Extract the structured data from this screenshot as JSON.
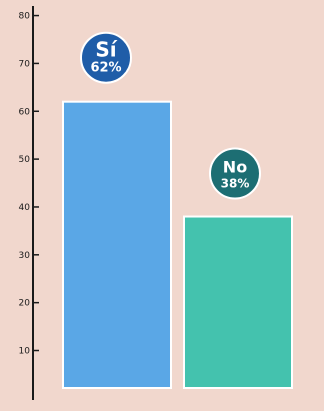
{
  "chart_data": {
    "type": "bar",
    "categories": [
      "Sí",
      "No"
    ],
    "values": [
      62,
      38
    ],
    "badges": [
      {
        "category": "Sí",
        "value_label": "62%"
      },
      {
        "category": "No",
        "value_label": "38%"
      }
    ],
    "title": "",
    "xlabel": "",
    "ylabel": "",
    "ylim": [
      3,
      82
    ],
    "yticks": [
      10,
      20,
      30,
      40,
      50,
      60,
      70,
      80
    ],
    "grid": false,
    "colors": {
      "background": "#f1d7cd",
      "bars": [
        "#5aa7e6",
        "#44c2ae"
      ],
      "badges": [
        "#1f5da8",
        "#1d6e73"
      ],
      "axis": "#1a1a1a",
      "bar_border": "#ffffff"
    }
  }
}
